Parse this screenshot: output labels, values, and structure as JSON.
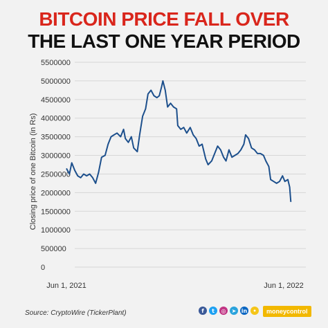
{
  "title_line1": "BITCOIN PRICE FALL OVER",
  "title_line2": "THE LAST ONE YEAR PERIOD",
  "source": "Source: CryptoWire (TickerPlant)",
  "brand": "moneycontrol",
  "social_icons": [
    "facebook-icon",
    "twitter-icon",
    "instagram-icon",
    "telegram-icon",
    "linkedin-icon",
    "koo-icon"
  ],
  "colors": {
    "title_red": "#d9261c",
    "line": "#1c4f8c",
    "brand": "#f2b800"
  },
  "chart_data": {
    "type": "line",
    "title": "",
    "ylabel": "Closing price of one Bitcoin (in Rs)",
    "xlabel": "",
    "ylim": [
      0,
      5500000
    ],
    "y_ticks": [
      0,
      500000,
      1000000,
      1500000,
      2000000,
      2500000,
      3000000,
      3500000,
      4000000,
      4500000,
      5000000,
      5500000
    ],
    "y_tick_labels": [
      "0",
      "500000",
      "1000000",
      "1500000",
      "2000000",
      "2500000",
      "3000000",
      "3500000",
      "4000000",
      "4500000",
      "5000000",
      "5500000"
    ],
    "x_ticks": [
      "2021-06-01",
      "2022-06-01"
    ],
    "x_tick_labels": [
      "Jun 1, 2021",
      "Jun 1, 2022"
    ],
    "grid": "horizontal",
    "series": [
      {
        "values": [
          [
            "2021-06-01",
            2650000
          ],
          [
            "2021-06-06",
            2500000
          ],
          [
            "2021-06-10",
            2800000
          ],
          [
            "2021-06-15",
            2600000
          ],
          [
            "2021-06-20",
            2450000
          ],
          [
            "2021-06-25",
            2400000
          ],
          [
            "2021-06-30",
            2500000
          ],
          [
            "2021-07-05",
            2450000
          ],
          [
            "2021-07-10",
            2500000
          ],
          [
            "2021-07-15",
            2400000
          ],
          [
            "2021-07-20",
            2250000
          ],
          [
            "2021-07-25",
            2550000
          ],
          [
            "2021-07-30",
            2950000
          ],
          [
            "2021-08-05",
            3000000
          ],
          [
            "2021-08-10",
            3300000
          ],
          [
            "2021-08-15",
            3500000
          ],
          [
            "2021-08-20",
            3550000
          ],
          [
            "2021-08-25",
            3600000
          ],
          [
            "2021-08-31",
            3500000
          ],
          [
            "2021-09-05",
            3700000
          ],
          [
            "2021-09-08",
            3450000
          ],
          [
            "2021-09-13",
            3350000
          ],
          [
            "2021-09-18",
            3500000
          ],
          [
            "2021-09-22",
            3200000
          ],
          [
            "2021-09-28",
            3100000
          ],
          [
            "2021-10-02",
            3550000
          ],
          [
            "2021-10-07",
            4050000
          ],
          [
            "2021-10-12",
            4250000
          ],
          [
            "2021-10-16",
            4650000
          ],
          [
            "2021-10-21",
            4750000
          ],
          [
            "2021-10-26",
            4600000
          ],
          [
            "2021-10-31",
            4550000
          ],
          [
            "2021-11-04",
            4600000
          ],
          [
            "2021-11-08",
            4850000
          ],
          [
            "2021-11-10",
            5000000
          ],
          [
            "2021-11-14",
            4750000
          ],
          [
            "2021-11-18",
            4300000
          ],
          [
            "2021-11-23",
            4400000
          ],
          [
            "2021-11-28",
            4300000
          ],
          [
            "2021-12-03",
            4250000
          ],
          [
            "2021-12-05",
            3800000
          ],
          [
            "2021-12-10",
            3700000
          ],
          [
            "2021-12-15",
            3750000
          ],
          [
            "2021-12-20",
            3600000
          ],
          [
            "2021-12-26",
            3750000
          ],
          [
            "2021-12-31",
            3550000
          ],
          [
            "2022-01-05",
            3450000
          ],
          [
            "2022-01-10",
            3250000
          ],
          [
            "2022-01-15",
            3300000
          ],
          [
            "2022-01-21",
            2900000
          ],
          [
            "2022-01-25",
            2750000
          ],
          [
            "2022-01-31",
            2850000
          ],
          [
            "2022-02-05",
            3050000
          ],
          [
            "2022-02-10",
            3250000
          ],
          [
            "2022-02-15",
            3150000
          ],
          [
            "2022-02-20",
            2950000
          ],
          [
            "2022-02-24",
            2850000
          ],
          [
            "2022-03-01",
            3150000
          ],
          [
            "2022-03-06",
            2950000
          ],
          [
            "2022-03-11",
            3000000
          ],
          [
            "2022-03-16",
            3050000
          ],
          [
            "2022-03-21",
            3150000
          ],
          [
            "2022-03-26",
            3300000
          ],
          [
            "2022-03-29",
            3550000
          ],
          [
            "2022-04-03",
            3450000
          ],
          [
            "2022-04-08",
            3200000
          ],
          [
            "2022-04-13",
            3150000
          ],
          [
            "2022-04-18",
            3050000
          ],
          [
            "2022-04-23",
            3050000
          ],
          [
            "2022-04-28",
            3000000
          ],
          [
            "2022-05-02",
            2850000
          ],
          [
            "2022-05-07",
            2700000
          ],
          [
            "2022-05-10",
            2350000
          ],
          [
            "2022-05-15",
            2300000
          ],
          [
            "2022-05-20",
            2250000
          ],
          [
            "2022-05-25",
            2300000
          ],
          [
            "2022-05-30",
            2450000
          ],
          [
            "2022-06-03",
            2300000
          ],
          [
            "2022-06-08",
            2350000
          ],
          [
            "2022-06-11",
            2150000
          ],
          [
            "2022-06-13",
            1750000
          ]
        ]
      }
    ]
  }
}
